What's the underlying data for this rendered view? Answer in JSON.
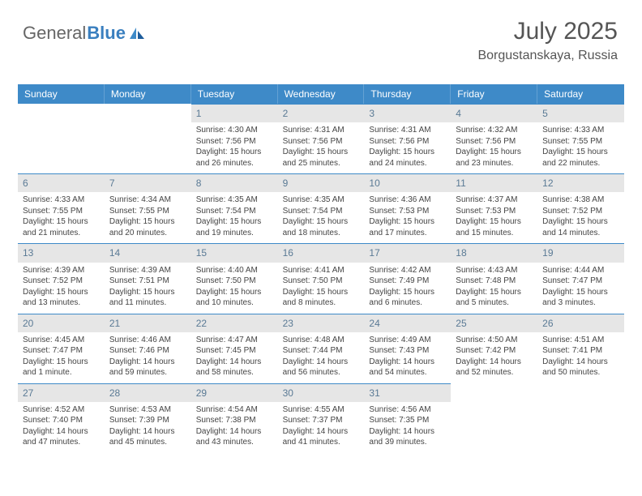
{
  "logo": {
    "text_general": "General",
    "text_blue": "Blue"
  },
  "header": {
    "month_title": "July 2025",
    "location": "Borgustanskaya, Russia"
  },
  "style": {
    "header_bg": "#3e8ac8",
    "header_text": "#ffffff",
    "daynum_bg": "#e6e6e6",
    "daynum_text": "#5a7a95",
    "border": "#3e8ac8",
    "body_text": "#444444",
    "page_bg": "#ffffff",
    "font_family": "Arial",
    "title_fontsize": 30,
    "location_fontsize": 16,
    "dow_fontsize": 12,
    "text_fontsize": 10
  },
  "days_of_week": [
    "Sunday",
    "Monday",
    "Tuesday",
    "Wednesday",
    "Thursday",
    "Friday",
    "Saturday"
  ],
  "weeks": [
    [
      null,
      null,
      {
        "n": "1",
        "sr": "Sunrise: 4:30 AM",
        "ss": "Sunset: 7:56 PM",
        "dl": "Daylight: 15 hours and 26 minutes."
      },
      {
        "n": "2",
        "sr": "Sunrise: 4:31 AM",
        "ss": "Sunset: 7:56 PM",
        "dl": "Daylight: 15 hours and 25 minutes."
      },
      {
        "n": "3",
        "sr": "Sunrise: 4:31 AM",
        "ss": "Sunset: 7:56 PM",
        "dl": "Daylight: 15 hours and 24 minutes."
      },
      {
        "n": "4",
        "sr": "Sunrise: 4:32 AM",
        "ss": "Sunset: 7:56 PM",
        "dl": "Daylight: 15 hours and 23 minutes."
      },
      {
        "n": "5",
        "sr": "Sunrise: 4:33 AM",
        "ss": "Sunset: 7:55 PM",
        "dl": "Daylight: 15 hours and 22 minutes."
      }
    ],
    [
      {
        "n": "6",
        "sr": "Sunrise: 4:33 AM",
        "ss": "Sunset: 7:55 PM",
        "dl": "Daylight: 15 hours and 21 minutes."
      },
      {
        "n": "7",
        "sr": "Sunrise: 4:34 AM",
        "ss": "Sunset: 7:55 PM",
        "dl": "Daylight: 15 hours and 20 minutes."
      },
      {
        "n": "8",
        "sr": "Sunrise: 4:35 AM",
        "ss": "Sunset: 7:54 PM",
        "dl": "Daylight: 15 hours and 19 minutes."
      },
      {
        "n": "9",
        "sr": "Sunrise: 4:35 AM",
        "ss": "Sunset: 7:54 PM",
        "dl": "Daylight: 15 hours and 18 minutes."
      },
      {
        "n": "10",
        "sr": "Sunrise: 4:36 AM",
        "ss": "Sunset: 7:53 PM",
        "dl": "Daylight: 15 hours and 17 minutes."
      },
      {
        "n": "11",
        "sr": "Sunrise: 4:37 AM",
        "ss": "Sunset: 7:53 PM",
        "dl": "Daylight: 15 hours and 15 minutes."
      },
      {
        "n": "12",
        "sr": "Sunrise: 4:38 AM",
        "ss": "Sunset: 7:52 PM",
        "dl": "Daylight: 15 hours and 14 minutes."
      }
    ],
    [
      {
        "n": "13",
        "sr": "Sunrise: 4:39 AM",
        "ss": "Sunset: 7:52 PM",
        "dl": "Daylight: 15 hours and 13 minutes."
      },
      {
        "n": "14",
        "sr": "Sunrise: 4:39 AM",
        "ss": "Sunset: 7:51 PM",
        "dl": "Daylight: 15 hours and 11 minutes."
      },
      {
        "n": "15",
        "sr": "Sunrise: 4:40 AM",
        "ss": "Sunset: 7:50 PM",
        "dl": "Daylight: 15 hours and 10 minutes."
      },
      {
        "n": "16",
        "sr": "Sunrise: 4:41 AM",
        "ss": "Sunset: 7:50 PM",
        "dl": "Daylight: 15 hours and 8 minutes."
      },
      {
        "n": "17",
        "sr": "Sunrise: 4:42 AM",
        "ss": "Sunset: 7:49 PM",
        "dl": "Daylight: 15 hours and 6 minutes."
      },
      {
        "n": "18",
        "sr": "Sunrise: 4:43 AM",
        "ss": "Sunset: 7:48 PM",
        "dl": "Daylight: 15 hours and 5 minutes."
      },
      {
        "n": "19",
        "sr": "Sunrise: 4:44 AM",
        "ss": "Sunset: 7:47 PM",
        "dl": "Daylight: 15 hours and 3 minutes."
      }
    ],
    [
      {
        "n": "20",
        "sr": "Sunrise: 4:45 AM",
        "ss": "Sunset: 7:47 PM",
        "dl": "Daylight: 15 hours and 1 minute."
      },
      {
        "n": "21",
        "sr": "Sunrise: 4:46 AM",
        "ss": "Sunset: 7:46 PM",
        "dl": "Daylight: 14 hours and 59 minutes."
      },
      {
        "n": "22",
        "sr": "Sunrise: 4:47 AM",
        "ss": "Sunset: 7:45 PM",
        "dl": "Daylight: 14 hours and 58 minutes."
      },
      {
        "n": "23",
        "sr": "Sunrise: 4:48 AM",
        "ss": "Sunset: 7:44 PM",
        "dl": "Daylight: 14 hours and 56 minutes."
      },
      {
        "n": "24",
        "sr": "Sunrise: 4:49 AM",
        "ss": "Sunset: 7:43 PM",
        "dl": "Daylight: 14 hours and 54 minutes."
      },
      {
        "n": "25",
        "sr": "Sunrise: 4:50 AM",
        "ss": "Sunset: 7:42 PM",
        "dl": "Daylight: 14 hours and 52 minutes."
      },
      {
        "n": "26",
        "sr": "Sunrise: 4:51 AM",
        "ss": "Sunset: 7:41 PM",
        "dl": "Daylight: 14 hours and 50 minutes."
      }
    ],
    [
      {
        "n": "27",
        "sr": "Sunrise: 4:52 AM",
        "ss": "Sunset: 7:40 PM",
        "dl": "Daylight: 14 hours and 47 minutes."
      },
      {
        "n": "28",
        "sr": "Sunrise: 4:53 AM",
        "ss": "Sunset: 7:39 PM",
        "dl": "Daylight: 14 hours and 45 minutes."
      },
      {
        "n": "29",
        "sr": "Sunrise: 4:54 AM",
        "ss": "Sunset: 7:38 PM",
        "dl": "Daylight: 14 hours and 43 minutes."
      },
      {
        "n": "30",
        "sr": "Sunrise: 4:55 AM",
        "ss": "Sunset: 7:37 PM",
        "dl": "Daylight: 14 hours and 41 minutes."
      },
      {
        "n": "31",
        "sr": "Sunrise: 4:56 AM",
        "ss": "Sunset: 7:35 PM",
        "dl": "Daylight: 14 hours and 39 minutes."
      },
      null,
      null
    ]
  ]
}
